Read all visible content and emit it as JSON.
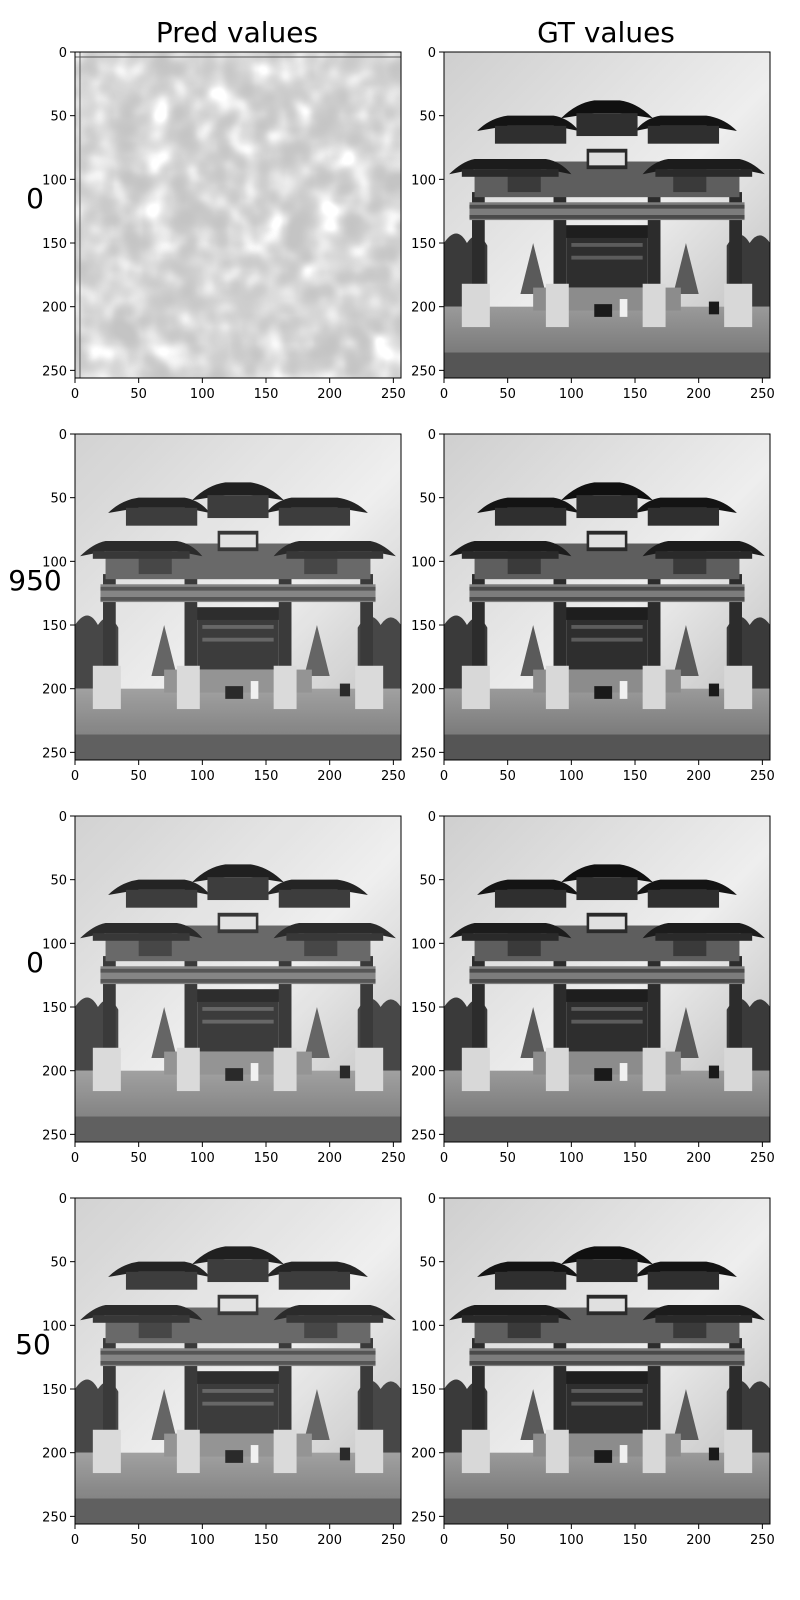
{
  "chart_data": {
    "type": "image_grid",
    "column_titles": [
      "Pred values",
      "GT values"
    ],
    "row_labels": [
      "0",
      "950",
      "0",
      "50"
    ],
    "image_size": [
      256,
      256
    ],
    "xlim": [
      0,
      256
    ],
    "ylim": [
      256,
      0
    ],
    "x_ticks": [
      0,
      50,
      100,
      150,
      200,
      250
    ],
    "y_ticks": [
      0,
      50,
      100,
      150,
      200,
      250
    ],
    "colormap": "gray",
    "panels": [
      {
        "row": 0,
        "col": 0,
        "content": "noise"
      },
      {
        "row": 0,
        "col": 1,
        "content": "archway photo"
      },
      {
        "row": 1,
        "col": 0,
        "content": "archway photo"
      },
      {
        "row": 1,
        "col": 1,
        "content": "archway photo"
      },
      {
        "row": 2,
        "col": 0,
        "content": "archway photo"
      },
      {
        "row": 2,
        "col": 1,
        "content": "archway photo"
      },
      {
        "row": 3,
        "col": 0,
        "content": "archway photo"
      },
      {
        "row": 3,
        "col": 1,
        "content": "archway photo"
      }
    ]
  }
}
